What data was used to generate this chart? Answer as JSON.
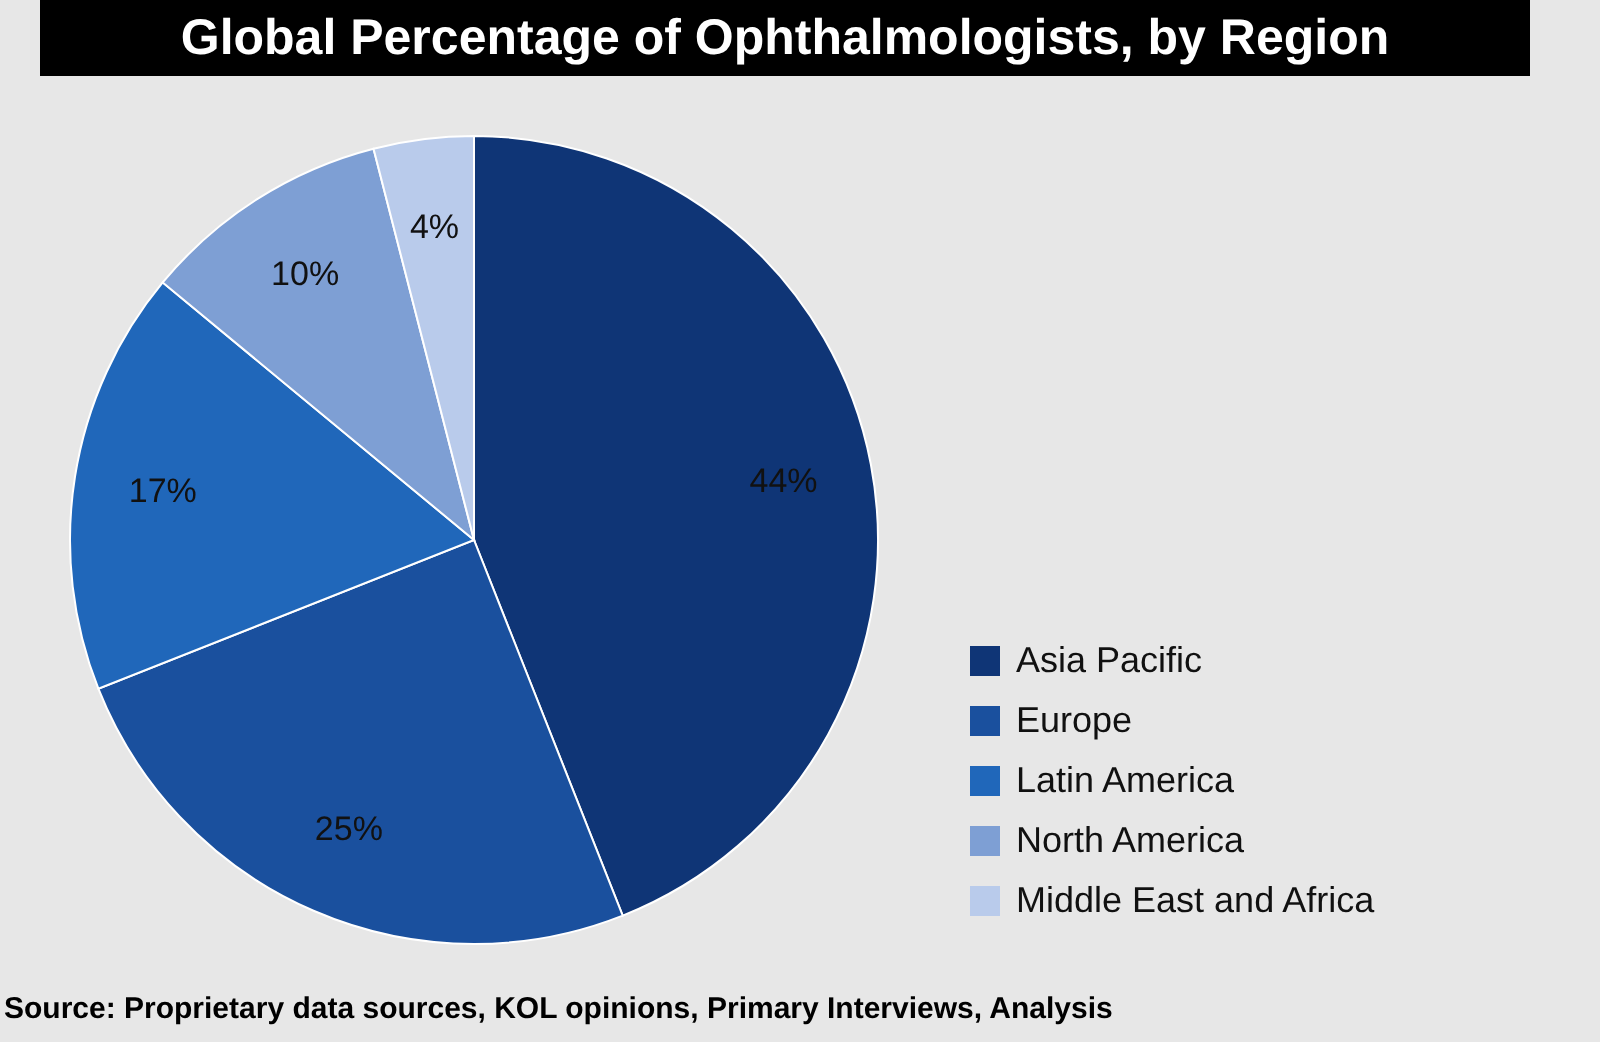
{
  "chart_data": {
    "type": "pie",
    "title": "Global Percentage of Ophthalmologists, by Region",
    "categories": [
      "Asia Pacific",
      "Europe",
      "Latin America",
      "North America",
      "Middle East and Africa"
    ],
    "values": [
      44,
      25,
      17,
      10,
      4
    ],
    "value_labels": [
      "44%",
      "25%",
      "17%",
      "10%",
      "4%"
    ],
    "colors": [
      "#0f3576",
      "#1a509e",
      "#2067ba",
      "#7e9fd4",
      "#b9cbeb"
    ],
    "legend": "right",
    "annotations": [
      "Source: Proprietary data sources, KOL opinions, Primary Interviews, Analysis"
    ]
  }
}
